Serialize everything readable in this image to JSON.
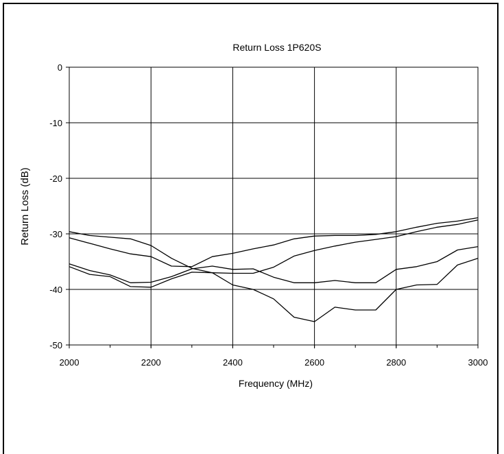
{
  "chart_data": {
    "type": "line",
    "title": "Return Loss 1P620S",
    "xlabel": "Frequency (MHz)",
    "ylabel": "Return Loss (dB)",
    "xlim": [
      2000,
      3000
    ],
    "ylim": [
      -50,
      0
    ],
    "xticks": [
      "2000",
      "2200",
      "2400",
      "2600",
      "2800",
      "3000"
    ],
    "yticks": [
      "0",
      "-10",
      "-20",
      "-30",
      "-40",
      "-50"
    ],
    "xtick_values": [
      2000,
      2200,
      2400,
      2600,
      2800,
      3000
    ],
    "ytick_values": [
      0,
      -10,
      -20,
      -30,
      -40,
      -50
    ],
    "grid": true,
    "line_color": "#000000",
    "series": [
      {
        "x": [
          2000,
          2050,
          2100,
          2150,
          2200,
          2250,
          2300,
          2350,
          2400,
          2450,
          2500,
          2550,
          2600,
          2650,
          2700,
          2750,
          2800,
          2850,
          2900,
          2950,
          3000
        ],
        "values": [
          -29.6,
          -30.3,
          -30.6,
          -30.9,
          -32.1,
          -34.4,
          -36.2,
          -37.0,
          -37.1,
          -37.1,
          -36.0,
          -34.0,
          -33.0,
          -32.2,
          -31.5,
          -31.0,
          -30.5,
          -29.6,
          -28.8,
          -28.3,
          -27.5
        ]
      },
      {
        "x": [
          2000,
          2050,
          2100,
          2150,
          2200,
          2250,
          2300,
          2350,
          2400,
          2450,
          2500,
          2550,
          2600,
          2650,
          2700,
          2750,
          2800,
          2850,
          2900,
          2950,
          3000
        ],
        "values": [
          -30.7,
          -31.7,
          -32.7,
          -33.6,
          -34.1,
          -35.8,
          -35.9,
          -34.1,
          -33.5,
          -32.7,
          -32.0,
          -30.9,
          -30.4,
          -30.3,
          -30.3,
          -30.1,
          -29.6,
          -28.8,
          -28.1,
          -27.7,
          -27.1
        ]
      },
      {
        "x": [
          2000,
          2050,
          2100,
          2150,
          2200,
          2250,
          2300,
          2350,
          2400,
          2450,
          2500,
          2550,
          2600,
          2650,
          2700,
          2750,
          2800,
          2850,
          2900,
          2950,
          3000
        ],
        "values": [
          -35.4,
          -36.6,
          -37.4,
          -38.8,
          -38.7,
          -37.7,
          -36.3,
          -35.8,
          -36.4,
          -36.3,
          -37.8,
          -38.8,
          -38.8,
          -38.4,
          -38.8,
          -38.8,
          -36.4,
          -35.9,
          -35.0,
          -32.9,
          -32.3
        ]
      },
      {
        "x": [
          2000,
          2050,
          2100,
          2150,
          2200,
          2250,
          2300,
          2350,
          2400,
          2450,
          2500,
          2550,
          2600,
          2650,
          2700,
          2750,
          2800,
          2850,
          2900,
          2950,
          3000
        ],
        "values": [
          -35.9,
          -37.3,
          -37.7,
          -39.5,
          -39.6,
          -38.1,
          -36.9,
          -37.0,
          -39.2,
          -40.0,
          -41.7,
          -45.0,
          -45.8,
          -43.2,
          -43.7,
          -43.7,
          -40.0,
          -39.2,
          -39.1,
          -35.6,
          -34.4
        ]
      }
    ]
  }
}
